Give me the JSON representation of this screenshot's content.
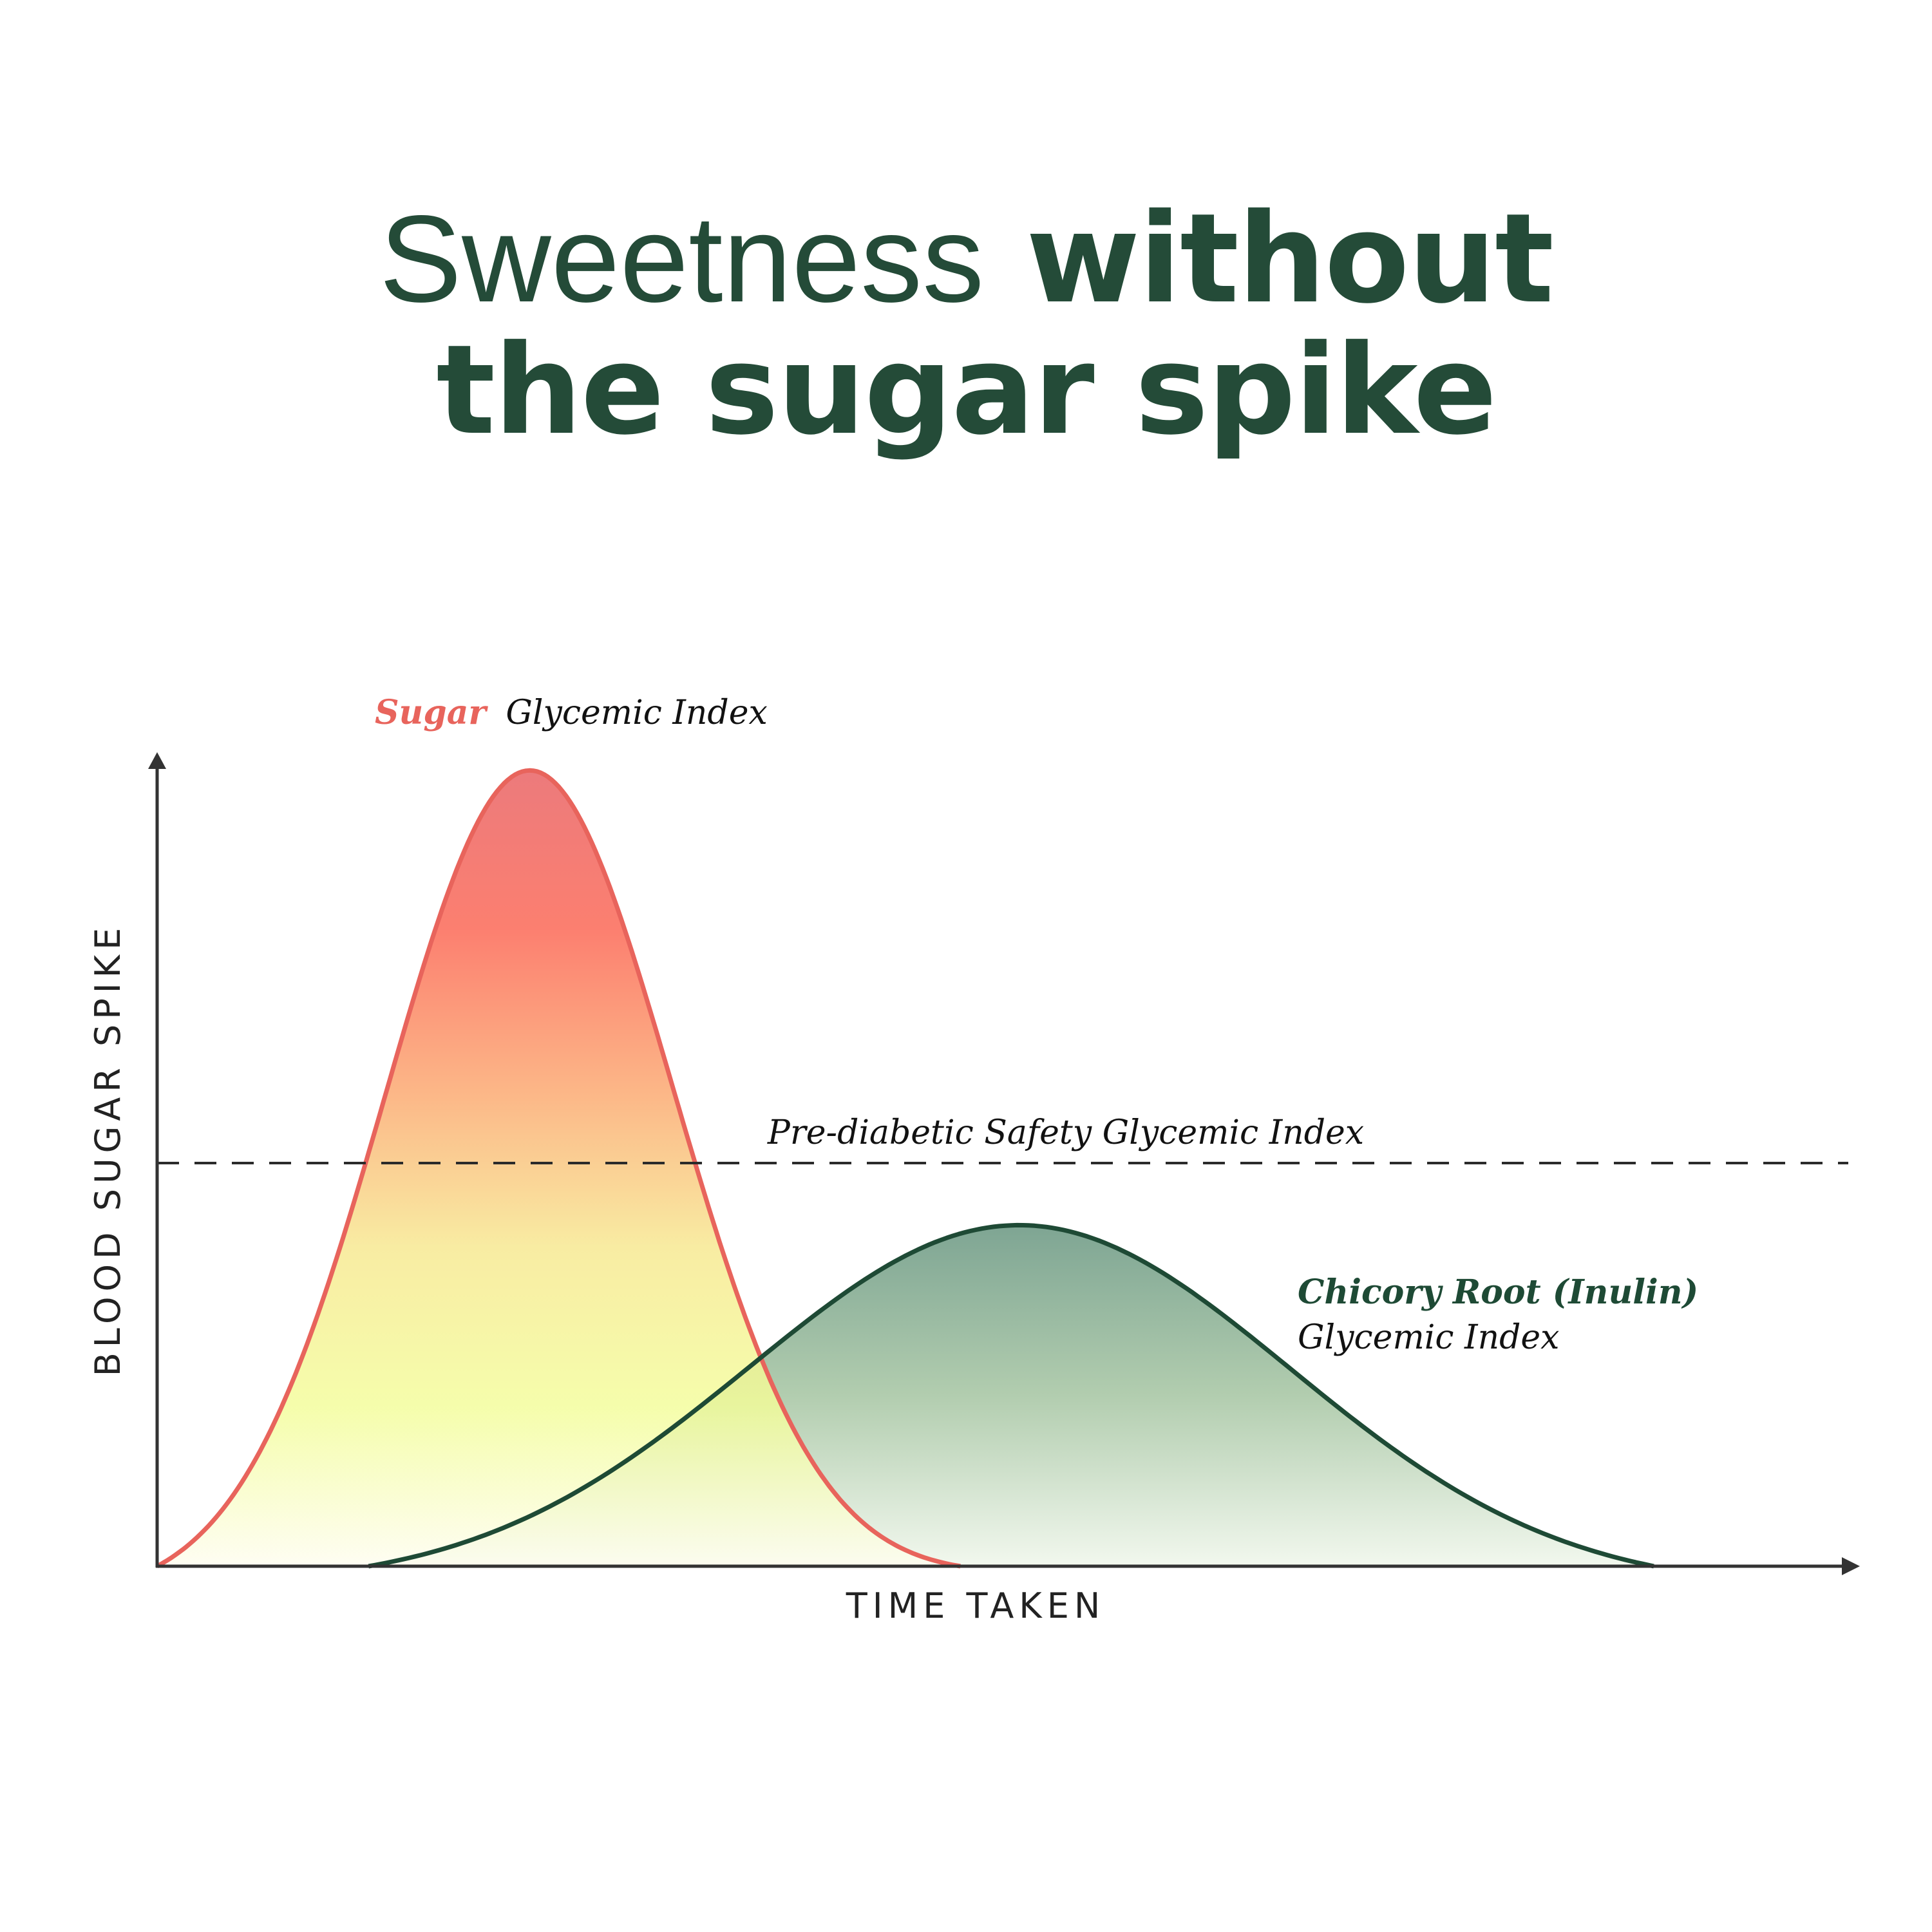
{
  "title": {
    "line1_light": "Sweetness",
    "line1_bold": "without",
    "line2_bold": "the sugar spike"
  },
  "chart_data": {
    "type": "area",
    "title": "Sweetness without the sugar spike",
    "xlabel": "TIME TAKEN",
    "ylabel": "BLOOD SUGAR SPIKE",
    "xlim": [
      0,
      100
    ],
    "ylim": [
      0,
      100
    ],
    "grid": false,
    "threshold": {
      "label": "Pre-diabetic Safety Glycemic Index",
      "value": 50
    },
    "series": [
      {
        "name": "Sugar",
        "suffix": "Glycemic Index",
        "color": "#e8645c",
        "peak_x": 22,
        "peak_y": 100,
        "spread": 8.5,
        "start_x": 0,
        "end_x": 47.5,
        "fill_stops": [
          "#e85d5f",
          "#fb6350",
          "#fba56c",
          "#f7e88e",
          "#f3fd99",
          "#fefdf0"
        ]
      },
      {
        "name": "Chicory Root (Inulin)",
        "suffix": "Glycemic Index",
        "color": "#1e4a35",
        "peak_x": 51,
        "peak_y": 42.5,
        "spread": 16,
        "start_x": 12.5,
        "end_x": 88.5,
        "fill_stops": [
          "#7ea593",
          "#b2cdaf",
          "#f2f8ee"
        ]
      }
    ]
  }
}
